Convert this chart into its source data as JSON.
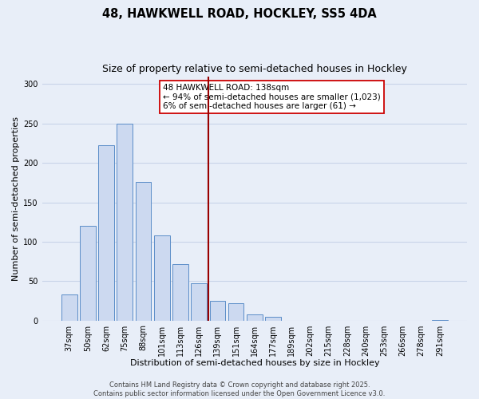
{
  "title": "48, HAWKWELL ROAD, HOCKLEY, SS5 4DA",
  "subtitle": "Size of property relative to semi-detached houses in Hockley",
  "xlabel": "Distribution of semi-detached houses by size in Hockley",
  "ylabel": "Number of semi-detached properties",
  "bar_labels": [
    "37sqm",
    "50sqm",
    "62sqm",
    "75sqm",
    "88sqm",
    "101sqm",
    "113sqm",
    "126sqm",
    "139sqm",
    "151sqm",
    "164sqm",
    "177sqm",
    "189sqm",
    "202sqm",
    "215sqm",
    "228sqm",
    "240sqm",
    "253sqm",
    "266sqm",
    "278sqm",
    "291sqm"
  ],
  "bar_values": [
    33,
    120,
    222,
    250,
    176,
    108,
    72,
    47,
    25,
    22,
    8,
    5,
    0,
    0,
    0,
    0,
    0,
    0,
    0,
    0,
    1
  ],
  "bar_color": "#ccd9f0",
  "bar_edge_color": "#5b8dc8",
  "ylim": [
    0,
    310
  ],
  "yticks": [
    0,
    50,
    100,
    150,
    200,
    250,
    300
  ],
  "vline_x_index": 8,
  "vline_color": "#990000",
  "annotation_title": "48 HAWKWELL ROAD: 138sqm",
  "annotation_line1": "← 94% of semi-detached houses are smaller (1,023)",
  "annotation_line2": "6% of semi-detached houses are larger (61) →",
  "annotation_box_facecolor": "#ffffff",
  "annotation_box_edge": "#cc0000",
  "footer_line1": "Contains HM Land Registry data © Crown copyright and database right 2025.",
  "footer_line2": "Contains public sector information licensed under the Open Government Licence v3.0.",
  "background_color": "#e8eef8",
  "plot_bg_color": "#e8eef8",
  "grid_color": "#c8d4e8",
  "title_fontsize": 10.5,
  "subtitle_fontsize": 9,
  "axis_label_fontsize": 8,
  "tick_fontsize": 7,
  "footer_fontsize": 6,
  "annotation_fontsize": 7.5
}
